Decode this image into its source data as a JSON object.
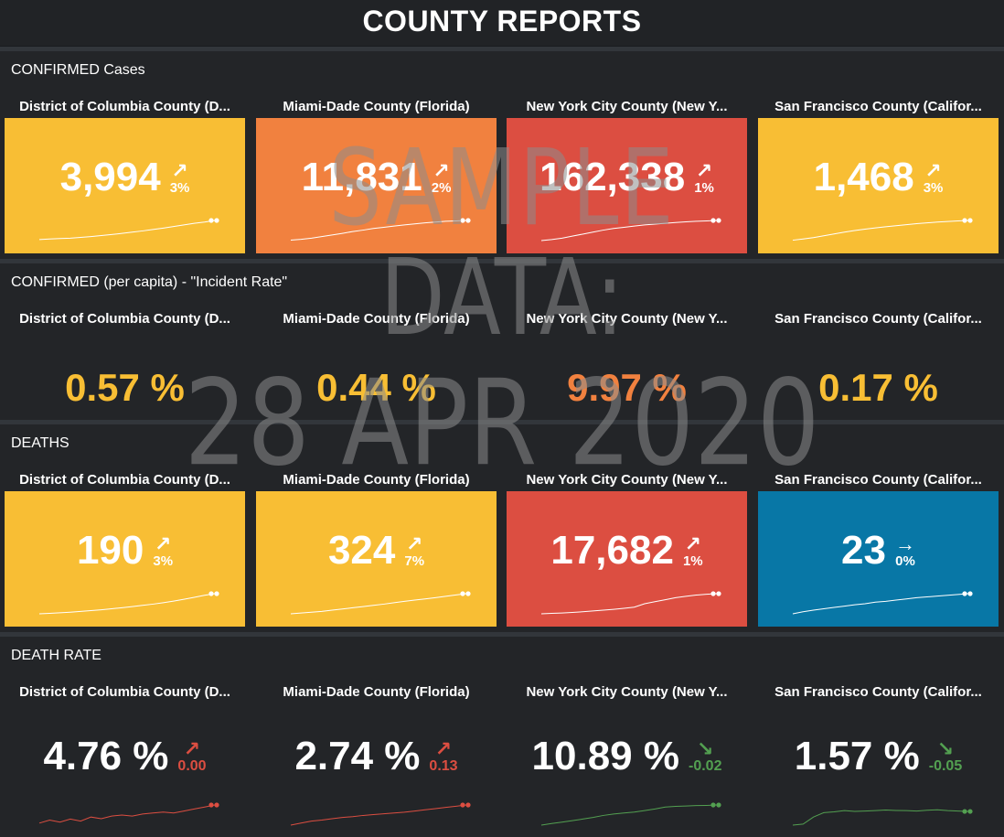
{
  "header": {
    "title": "COUNTY REPORTS"
  },
  "colors": {
    "yellow": "#f8be34",
    "orange": "#f1813f",
    "red": "#dc4e41",
    "blue": "#0877a6",
    "up_red": "#dc4e41",
    "down_green": "#53a051"
  },
  "sections": [
    {
      "title": "CONFIRMED Cases",
      "panels": [
        {
          "county": "District of Columbia County (D...",
          "value": "3,994",
          "arrow": "↗",
          "change": "3%",
          "color": "yellow",
          "trend": [
            0.05,
            0.08,
            0.1,
            0.12,
            0.16,
            0.2,
            0.25,
            0.3,
            0.36,
            0.42,
            0.48,
            0.55,
            0.62,
            0.7,
            0.78,
            0.86,
            0.92,
            1.0
          ]
        },
        {
          "county": "Miami-Dade County (Florida)",
          "value": "11,831",
          "arrow": "↗",
          "change": "2%",
          "color": "orange",
          "trend": [
            0.02,
            0.06,
            0.12,
            0.2,
            0.28,
            0.36,
            0.45,
            0.52,
            0.6,
            0.66,
            0.72,
            0.78,
            0.83,
            0.88,
            0.92,
            0.96,
            0.98,
            1.0
          ]
        },
        {
          "county": "New York City County (New Y...",
          "value": "162,338",
          "arrow": "↗",
          "change": "1%",
          "color": "red",
          "trend": [
            0.0,
            0.05,
            0.12,
            0.22,
            0.32,
            0.42,
            0.52,
            0.6,
            0.66,
            0.72,
            0.78,
            0.82,
            0.86,
            0.9,
            0.93,
            0.96,
            0.98,
            1.0
          ]
        },
        {
          "county": "San Francisco County (Califor...",
          "value": "1,468",
          "arrow": "↗",
          "change": "3%",
          "color": "yellow",
          "trend": [
            0.02,
            0.08,
            0.15,
            0.24,
            0.33,
            0.42,
            0.5,
            0.57,
            0.63,
            0.69,
            0.74,
            0.79,
            0.84,
            0.88,
            0.92,
            0.95,
            0.98,
            1.0
          ]
        }
      ]
    },
    {
      "title": "CONFIRMED (per capita) - \"Incident Rate\"",
      "panels": [
        {
          "county": "District of Columbia County (D...",
          "value": "0.57 %",
          "color": "yellow"
        },
        {
          "county": "Miami-Dade County (Florida)",
          "value": "0.44 %",
          "color": "yellow"
        },
        {
          "county": "New York City County (New Y...",
          "value": "9.97 %",
          "color": "orange"
        },
        {
          "county": "San Francisco County (Califor...",
          "value": "0.17 %",
          "color": "yellow"
        }
      ]
    },
    {
      "title": "DEATHS",
      "panels": [
        {
          "county": "District of Columbia County (D...",
          "value": "190",
          "arrow": "↗",
          "change": "3%",
          "color": "yellow",
          "trend": [
            0.0,
            0.02,
            0.05,
            0.08,
            0.12,
            0.16,
            0.2,
            0.25,
            0.3,
            0.36,
            0.42,
            0.48,
            0.55,
            0.63,
            0.72,
            0.82,
            0.92,
            1.0
          ]
        },
        {
          "county": "Miami-Dade County (Florida)",
          "value": "324",
          "arrow": "↗",
          "change": "7%",
          "color": "yellow",
          "trend": [
            0.0,
            0.04,
            0.08,
            0.12,
            0.18,
            0.24,
            0.3,
            0.36,
            0.42,
            0.48,
            0.55,
            0.62,
            0.68,
            0.74,
            0.8,
            0.87,
            0.94,
            1.0
          ]
        },
        {
          "county": "New York City County (New Y...",
          "value": "17,682",
          "arrow": "↗",
          "change": "1%",
          "color": "red",
          "trend": [
            0.0,
            0.02,
            0.04,
            0.07,
            0.1,
            0.14,
            0.18,
            0.22,
            0.27,
            0.33,
            0.5,
            0.6,
            0.7,
            0.8,
            0.87,
            0.93,
            0.97,
            1.0
          ]
        },
        {
          "county": "San Francisco County (Califor...",
          "value": "23",
          "arrow": "→",
          "change": "0%",
          "color": "blue",
          "trend": [
            0.0,
            0.1,
            0.18,
            0.25,
            0.32,
            0.38,
            0.45,
            0.5,
            0.58,
            0.62,
            0.68,
            0.74,
            0.8,
            0.84,
            0.88,
            0.92,
            0.96,
            1.0
          ]
        }
      ]
    },
    {
      "title": "DEATH RATE",
      "panels": [
        {
          "county": "District of Columbia County (D...",
          "value": "4.76 %",
          "arrow": "↗",
          "change": "0.00",
          "direction": "up",
          "trend": [
            0.1,
            0.25,
            0.15,
            0.3,
            0.2,
            0.4,
            0.32,
            0.45,
            0.5,
            0.45,
            0.55,
            0.6,
            0.65,
            0.6,
            0.7,
            0.8,
            0.9,
            1.0
          ]
        },
        {
          "county": "Miami-Dade County (Florida)",
          "value": "2.74 %",
          "arrow": "↗",
          "change": "0.13",
          "direction": "up",
          "trend": [
            0.0,
            0.1,
            0.2,
            0.25,
            0.32,
            0.38,
            0.42,
            0.48,
            0.52,
            0.56,
            0.6,
            0.64,
            0.7,
            0.76,
            0.82,
            0.88,
            0.94,
            1.0
          ]
        },
        {
          "county": "New York City County (New Y...",
          "value": "10.89 %",
          "arrow": "↘",
          "change": "-0.02",
          "direction": "down",
          "trend": [
            0.0,
            0.08,
            0.15,
            0.22,
            0.3,
            0.38,
            0.48,
            0.55,
            0.6,
            0.65,
            0.72,
            0.8,
            0.9,
            0.93,
            0.95,
            0.97,
            0.98,
            1.0
          ]
        },
        {
          "county": "San Francisco County (Califor...",
          "value": "1.57 %",
          "arrow": "↘",
          "change": "-0.05",
          "direction": "down",
          "trend": [
            0.0,
            0.05,
            0.4,
            0.62,
            0.66,
            0.72,
            0.68,
            0.7,
            0.72,
            0.75,
            0.73,
            0.72,
            0.7,
            0.74,
            0.76,
            0.72,
            0.7,
            0.68
          ]
        }
      ]
    }
  ],
  "watermark": {
    "line1": "SAMPLE",
    "line2": "DATA:",
    "line3": "28 APR 2020"
  }
}
